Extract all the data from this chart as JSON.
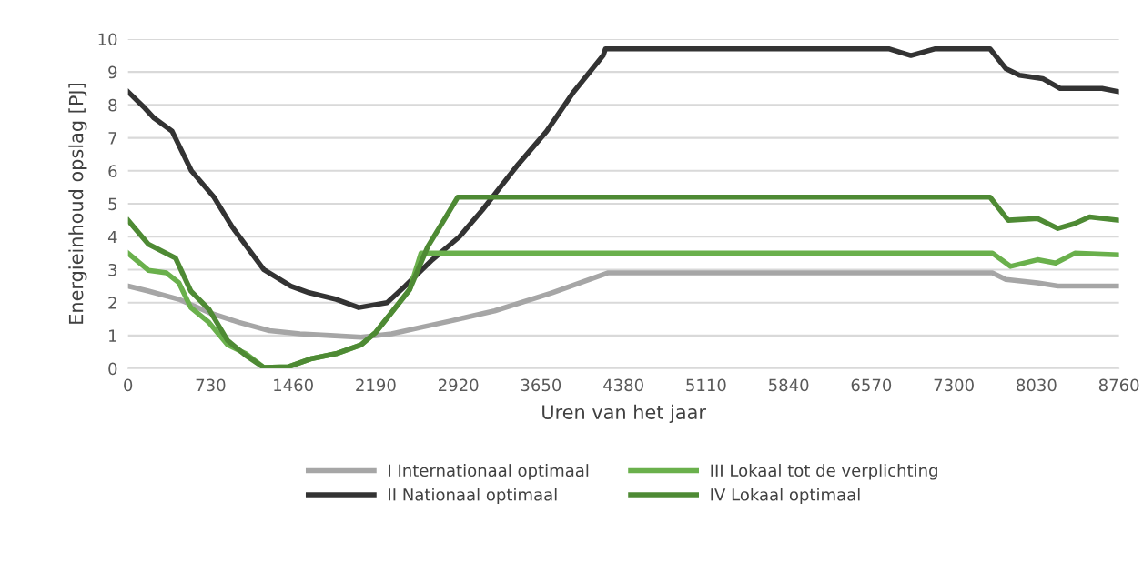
{
  "chart_data": {
    "type": "line",
    "xlabel": "Uren van het jaar",
    "ylabel": "Energieinhoud opslag [PJ]",
    "xlim": [
      0,
      8760
    ],
    "xticks": [
      0,
      730,
      1460,
      2190,
      2920,
      3650,
      4380,
      5110,
      5840,
      6570,
      7300,
      8030,
      8760
    ],
    "ylim": [
      0,
      10
    ],
    "yticks": [
      0,
      1,
      2,
      3,
      4,
      5,
      6,
      7,
      8,
      9,
      10
    ],
    "grid": "y",
    "legend": "bottom",
    "marker": "none",
    "line_style": "solid",
    "series": [
      {
        "name": "I Internationaal optimaal",
        "color": "#a6a6a6",
        "x": [
          0,
          180,
          450,
          715,
          980,
          1250,
          1520,
          1790,
          2060,
          2330,
          2590,
          2860,
          3240,
          3750,
          4240,
          7640,
          7760,
          8040,
          8220,
          8760
        ],
        "values": [
          2.5,
          2.35,
          2.1,
          1.7,
          1.4,
          1.15,
          1.05,
          1.0,
          0.95,
          1.05,
          1.25,
          1.45,
          1.75,
          2.3,
          2.9,
          2.9,
          2.7,
          2.6,
          2.5,
          2.5
        ]
      },
      {
        "name": "II Nationaal optimaal",
        "color": "#333333",
        "x": [
          0,
          150,
          230,
          390,
          560,
          760,
          920,
          1200,
          1440,
          1600,
          1840,
          2040,
          2290,
          2450,
          2690,
          2930,
          3130,
          3450,
          3700,
          3940,
          4200,
          4220,
          6730,
          6920,
          7130,
          7620,
          7760,
          7880,
          8085,
          8240,
          8370,
          8490,
          8610,
          8760
        ],
        "values": [
          8.4,
          7.9,
          7.6,
          7.2,
          6.0,
          5.2,
          4.3,
          3.0,
          2.5,
          2.3,
          2.1,
          1.85,
          2.0,
          2.5,
          3.3,
          4.0,
          4.8,
          6.2,
          7.2,
          8.4,
          9.5,
          9.7,
          9.7,
          9.5,
          9.7,
          9.7,
          9.1,
          8.9,
          8.8,
          8.5,
          8.5,
          8.5,
          8.5,
          8.4
        ]
      },
      {
        "name": "III Lokaal tot de verplichting",
        "color": "#6ab04c",
        "x": [
          0,
          180,
          340,
          450,
          555,
          715,
          880,
          1040,
          1200,
          1415,
          1625,
          1840,
          2060,
          2190,
          2330,
          2490,
          2590,
          7640,
          7800,
          8040,
          8200,
          8370,
          8760
        ],
        "values": [
          3.5,
          2.98,
          2.9,
          2.6,
          1.85,
          1.4,
          0.72,
          0.45,
          0.03,
          0.05,
          0.3,
          0.45,
          0.72,
          1.1,
          1.7,
          2.4,
          3.5,
          3.5,
          3.1,
          3.3,
          3.2,
          3.5,
          3.45
        ]
      },
      {
        "name": "IV Lokaal optimaal",
        "color": "#4e8a34",
        "x": [
          0,
          180,
          420,
          555,
          715,
          880,
          1040,
          1200,
          1415,
          1625,
          1840,
          2060,
          2190,
          2330,
          2490,
          2650,
          2810,
          2915,
          7620,
          7780,
          8040,
          8220,
          8370,
          8500,
          8760
        ],
        "values": [
          4.5,
          3.77,
          3.35,
          2.35,
          1.8,
          0.85,
          0.4,
          0.03,
          0.05,
          0.3,
          0.45,
          0.72,
          1.1,
          1.7,
          2.4,
          3.7,
          4.6,
          5.2,
          5.2,
          4.5,
          4.55,
          4.25,
          4.4,
          4.6,
          4.5
        ]
      }
    ]
  }
}
